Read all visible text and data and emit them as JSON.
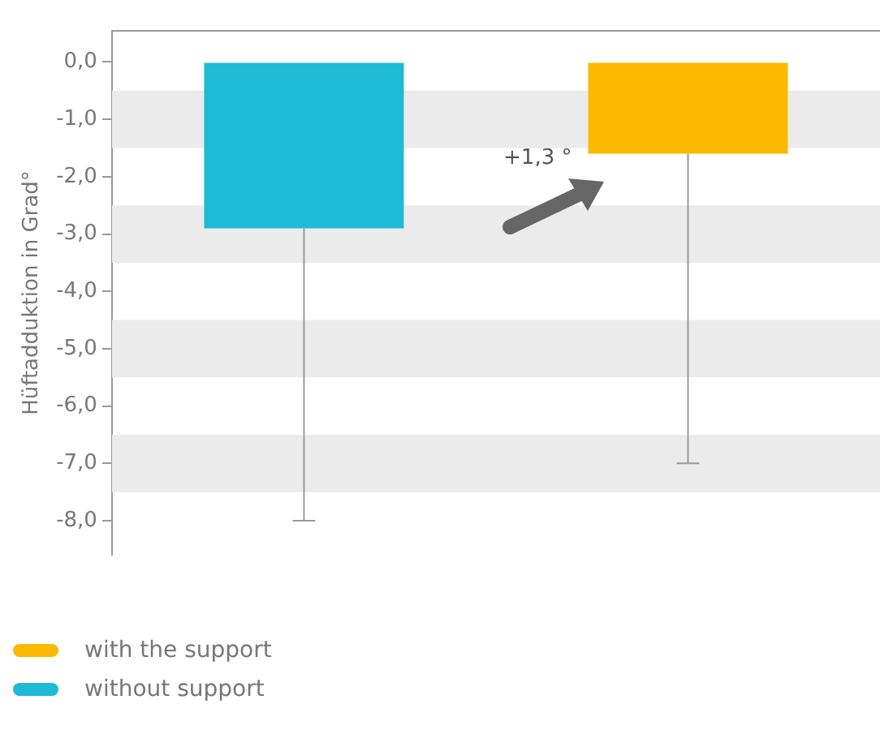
{
  "chart_data": {
    "type": "bar",
    "ylabel": "Hüftadduktion in Grad°",
    "categories": [
      null,
      null
    ],
    "series": [
      {
        "name": "without support",
        "color": "#1fbad6",
        "values": [
          -2.9,
          null
        ],
        "errors": [
          [
            -8.0,
            -2.9
          ],
          null
        ]
      },
      {
        "name": "with the support",
        "color": "#fbb900",
        "values": [
          null,
          -1.6
        ],
        "errors": [
          null,
          [
            -7.0,
            -1.6
          ]
        ]
      }
    ],
    "ylim": [
      -8.6,
      0.55
    ],
    "yticks": [
      {
        "value": 0,
        "label": "0,0"
      },
      {
        "value": -1,
        "label": "-1,0"
      },
      {
        "value": -2,
        "label": "-2,0"
      },
      {
        "value": -3,
        "label": "-3,0"
      },
      {
        "value": -4,
        "label": "-4,0"
      },
      {
        "value": -5,
        "label": "-5,0"
      },
      {
        "value": -6,
        "label": "-6,0"
      },
      {
        "value": -7,
        "label": "-7,0"
      },
      {
        "value": -8,
        "label": "-8,0"
      }
    ],
    "bands": [
      {
        "axis": "y",
        "from": -0.5,
        "to": -1.5,
        "color": "#ebebeb"
      },
      {
        "axis": "y",
        "from": -2.5,
        "to": -3.5,
        "color": "#ebebeb"
      },
      {
        "axis": "y",
        "from": -4.5,
        "to": -5.5,
        "color": "#ebebeb"
      },
      {
        "axis": "y",
        "from": -6.5,
        "to": -7.5,
        "color": "#ebebeb"
      }
    ],
    "annotations": [
      "+1,3 °"
    ],
    "grid": false,
    "legend": "bottom left",
    "tick_labels": "y"
  }
}
